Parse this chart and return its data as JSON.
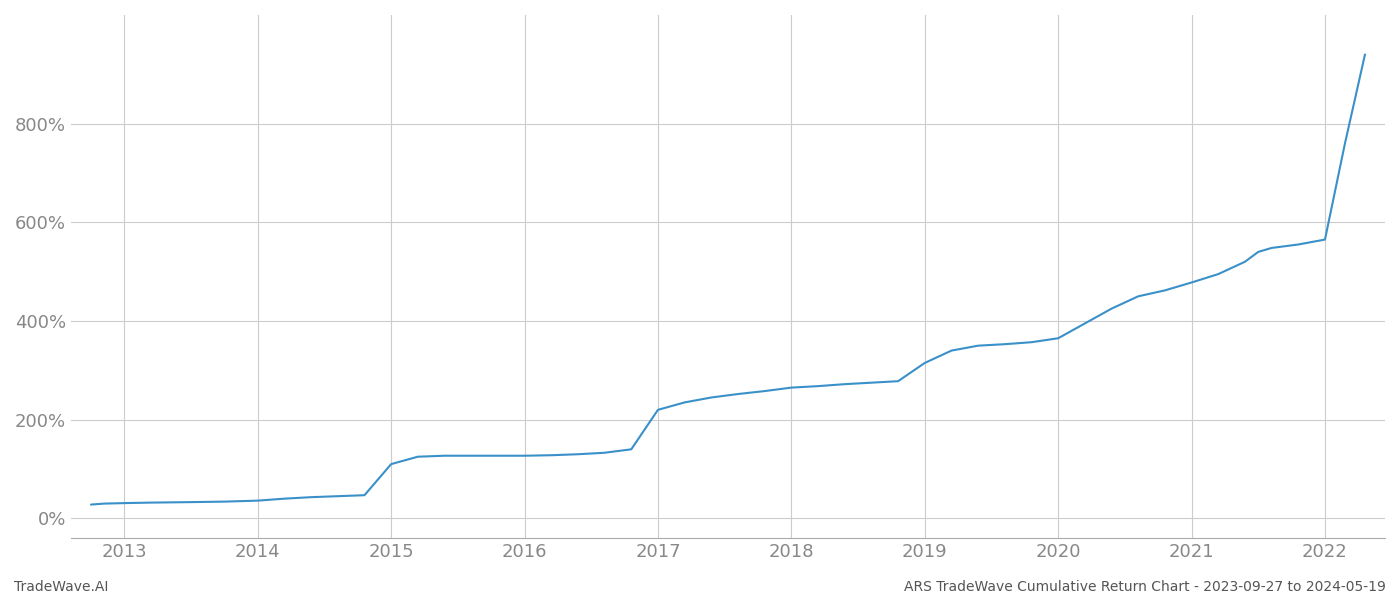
{
  "footer_left": "TradeWave.AI",
  "footer_right": "ARS TradeWave Cumulative Return Chart - 2023-09-27 to 2024-05-19",
  "line_color": "#3a90c8",
  "line_width": 1.5,
  "background_color": "#ffffff",
  "grid_color": "#cccccc",
  "x_years": [
    2013,
    2014,
    2015,
    2016,
    2017,
    2018,
    2019,
    2020,
    2021,
    2022
  ],
  "yticks": [
    0,
    200,
    400,
    600,
    800
  ],
  "ylim": [
    -40,
    1020
  ],
  "xlim": [
    2012.6,
    2022.45
  ],
  "data_x": [
    2012.75,
    2012.85,
    2013.0,
    2013.2,
    2013.5,
    2013.75,
    2014.0,
    2014.2,
    2014.4,
    2014.6,
    2014.8,
    2015.0,
    2015.2,
    2015.4,
    2015.6,
    2015.8,
    2016.0,
    2016.2,
    2016.4,
    2016.6,
    2016.8,
    2017.0,
    2017.2,
    2017.4,
    2017.6,
    2017.8,
    2018.0,
    2018.2,
    2018.4,
    2018.6,
    2018.8,
    2019.0,
    2019.2,
    2019.4,
    2019.6,
    2019.8,
    2020.0,
    2020.2,
    2020.4,
    2020.6,
    2020.8,
    2021.0,
    2021.2,
    2021.4,
    2021.5,
    2021.6,
    2021.8,
    2022.0,
    2022.15,
    2022.3
  ],
  "data_y": [
    28,
    30,
    31,
    32,
    33,
    34,
    36,
    40,
    43,
    45,
    47,
    110,
    125,
    127,
    127,
    127,
    127,
    128,
    130,
    133,
    140,
    220,
    235,
    245,
    252,
    258,
    265,
    268,
    272,
    275,
    278,
    315,
    340,
    350,
    353,
    357,
    365,
    395,
    425,
    450,
    462,
    478,
    495,
    520,
    540,
    548,
    555,
    565,
    760,
    940
  ],
  "text_color": "#555555",
  "tick_label_color": "#888888",
  "footer_fontsize": 10,
  "tick_fontsize": 13
}
